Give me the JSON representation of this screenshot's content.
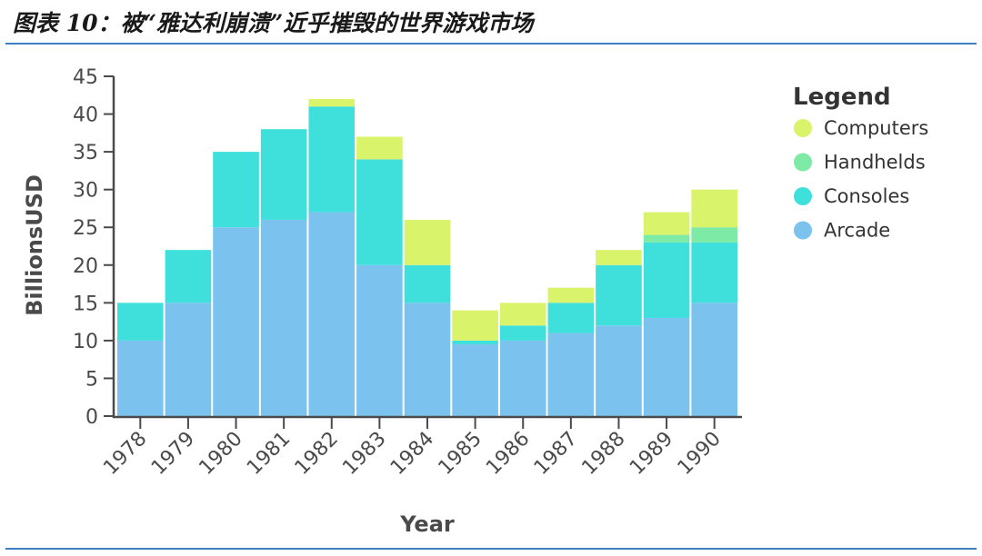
{
  "figure_title": "图表 10：被“雅达利崩溃”近乎摧毁的世界游戏市场",
  "chart_data": {
    "type": "bar",
    "stacked": true,
    "categories": [
      "1978",
      "1979",
      "1980",
      "1981",
      "1982",
      "1983",
      "1984",
      "1985",
      "1986",
      "1987",
      "1988",
      "1989",
      "1990"
    ],
    "series": [
      {
        "name": "Arcade",
        "color": "#7cc2ee",
        "values": [
          10,
          15,
          25,
          26,
          27,
          20,
          15,
          9.5,
          10,
          11,
          12,
          13,
          15
        ]
      },
      {
        "name": "Consoles",
        "color": "#3fe0dc",
        "values": [
          5,
          7,
          10,
          12,
          14,
          14,
          5,
          0.5,
          2,
          4,
          8,
          10,
          8
        ]
      },
      {
        "name": "Handhelds",
        "color": "#7deaa6",
        "values": [
          0,
          0,
          0,
          0,
          0,
          0,
          0,
          0,
          0,
          0,
          0,
          1,
          2
        ]
      },
      {
        "name": "Computers",
        "color": "#d9f36a",
        "values": [
          0,
          0,
          0,
          0,
          1,
          3,
          6,
          4,
          3,
          2,
          2,
          3,
          5
        ]
      }
    ],
    "xlabel": "Year",
    "ylabel": "BillionsUSD",
    "ylim": [
      0,
      45
    ],
    "yticks": [
      0,
      5,
      10,
      15,
      20,
      25,
      30,
      35,
      40,
      45
    ],
    "legend": {
      "title": "Legend",
      "position": "right",
      "order": [
        "Computers",
        "Handhelds",
        "Consoles",
        "Arcade"
      ]
    },
    "grid": false
  }
}
